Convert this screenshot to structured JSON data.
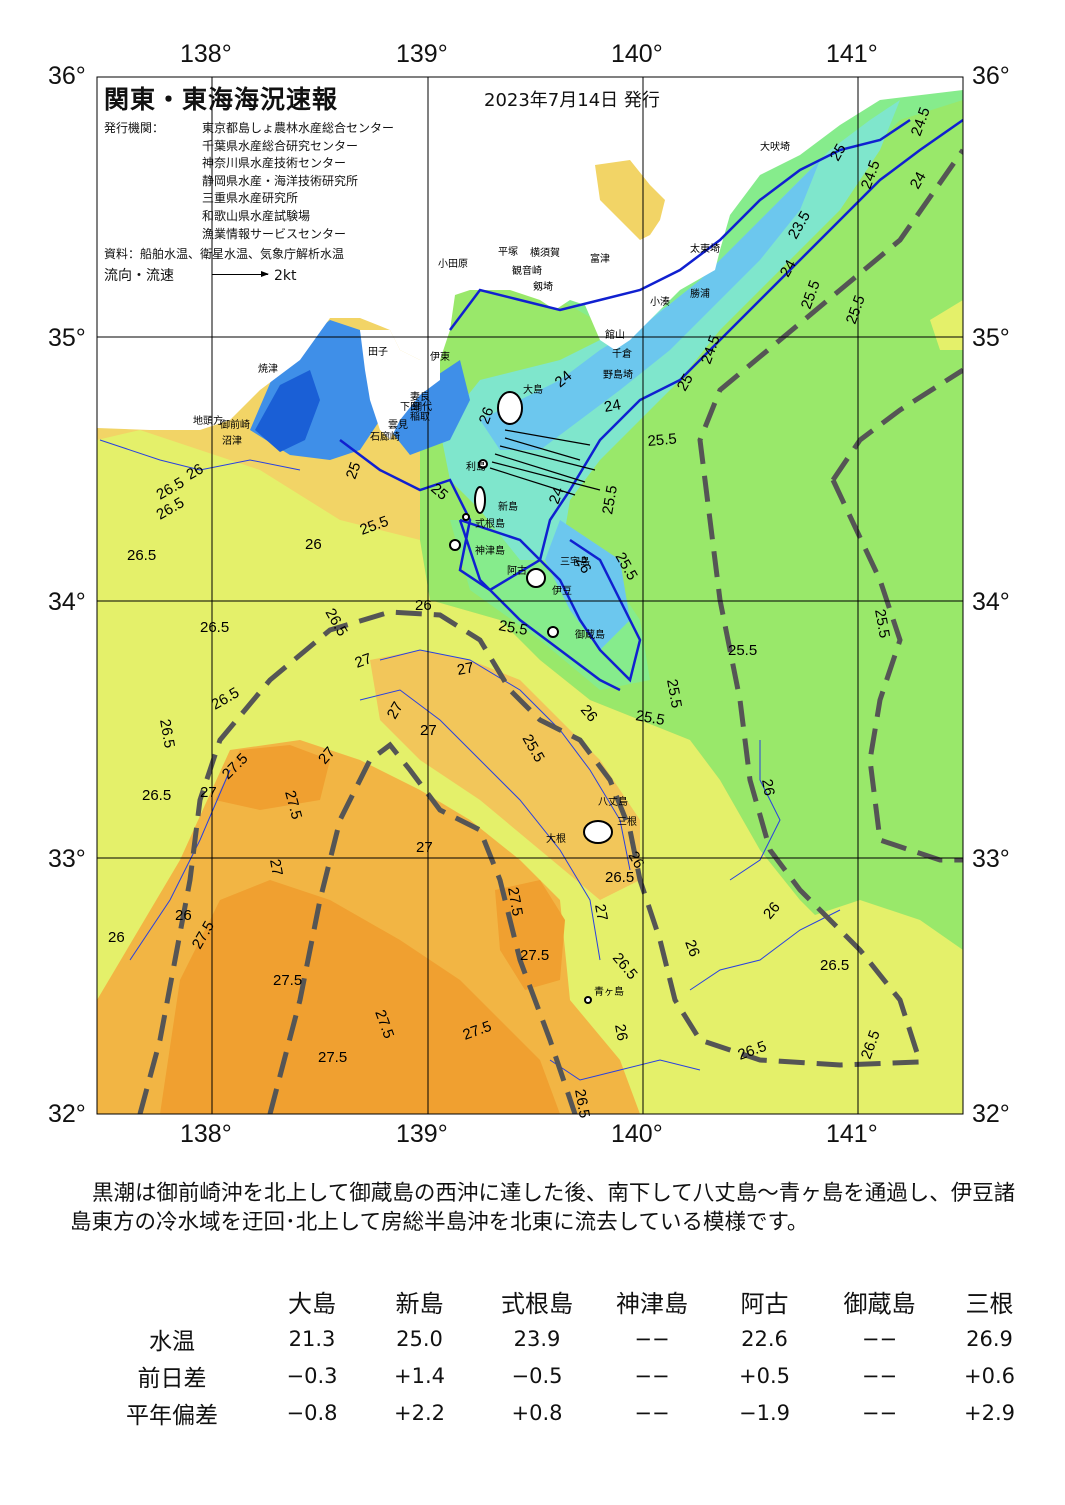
{
  "title": "関東・東海海況速報",
  "issue_date": "2023年7月14日 発行",
  "agencies_label": "発行機関：",
  "agencies": [
    "東京都島しょ農林水産総合センター",
    "千葉県水産総合研究センター",
    "神奈川県水産技術センター",
    "静岡県水産・海洋技術研究所",
    "三重県水産研究所",
    "和歌山県水産試験場",
    "漁業情報サービスセンター"
  ],
  "sources": "資料：船舶水温、衛星水温、気象庁解析水温",
  "flow_legend": {
    "label": "流向・流速",
    "scale": "2kt"
  },
  "map": {
    "lon_labels": [
      "138°",
      "139°",
      "140°",
      "141°"
    ],
    "lat_labels": [
      "36°",
      "35°",
      "34°",
      "33°",
      "32°"
    ],
    "place_labels": [
      "大吠埼",
      "太東埼",
      "勝浦",
      "小湊",
      "館山",
      "千倉",
      "野島埼",
      "富津",
      "横須賀",
      "観音崎",
      "剱埼",
      "平塚",
      "小田原",
      "大島",
      "利島",
      "新島",
      "式根島",
      "神津島",
      "三宅島",
      "阿古",
      "伊豆",
      "御蔵島",
      "八丈島",
      "三根",
      "大根",
      "青ヶ島",
      "下田",
      "石廊崎",
      "雲見",
      "妻良",
      "田子",
      "伊東",
      "焼津",
      "御前崎",
      "地頭方",
      "沼津",
      "網代",
      "稲取"
    ],
    "contour_labels": [
      "24.5",
      "25",
      "24",
      "23.5",
      "24",
      "25.5",
      "25.5",
      "24.5",
      "24",
      "24",
      "25",
      "24.5",
      "24",
      "25.5",
      "25.5",
      "25",
      "26",
      "26.5",
      "26.5",
      "26.5",
      "26",
      "25.5",
      "26",
      "25",
      "25.5",
      "26",
      "26.5",
      "26.5",
      "25.5",
      "26",
      "27",
      "27",
      "27",
      "27",
      "27",
      "26.5",
      "26.5",
      "27",
      "26",
      "26.5",
      "27.5",
      "27.5",
      "27.5",
      "27.5",
      "27",
      "25.5",
      "25.5",
      "25.5",
      "25.5",
      "26",
      "25.5",
      "26",
      "26",
      "26",
      "26.5",
      "26.5",
      "26",
      "26.5",
      "27",
      "27.5",
      "27.5",
      "27.5",
      "27.5",
      "27.5",
      "27",
      "26.5",
      "26",
      "26",
      "26.5",
      "26.5"
    ],
    "colors": {
      "t_le_22": "#1a5fd6",
      "t_22_23": "#3f8fe8",
      "t_23_24": "#6cc7ee",
      "t_24_25": "#7fe6cc",
      "t_25_255": "#86ec8c",
      "t_255_26": "#99e86a",
      "t_26_265": "#e4f06a",
      "t_265_27": "#f2d466",
      "t_27_275": "#f2b544",
      "t_ge_275": "#f0a030",
      "land": "#ffffff",
      "kuroshio_axis": "#555555",
      "current_line": "#0000cc"
    }
  },
  "commentary": "黒潮は御前崎沖を北上して御蔵島の西沖に達した後、南下して八丈島～青ヶ島を通過し、伊豆諸島東方の冷水域を迂回･北上して房総半島沖を北東に流去している模様です。",
  "table": {
    "stations": [
      "大島",
      "新島",
      "式根島",
      "神津島",
      "阿古",
      "御蔵島",
      "三根"
    ],
    "rows": [
      {
        "label": "水温",
        "values": [
          "21.3",
          "25.0",
          "23.9",
          "−−",
          "22.6",
          "−−",
          "26.9"
        ]
      },
      {
        "label": "前日差",
        "values": [
          "−0.3",
          "+1.4",
          "−0.5",
          "−−",
          "+0.5",
          "−−",
          "+0.6"
        ]
      },
      {
        "label": "平年偏差",
        "values": [
          "−0.8",
          "+2.2",
          "+0.8",
          "−−",
          "−1.9",
          "−−",
          "+2.9"
        ]
      }
    ]
  }
}
